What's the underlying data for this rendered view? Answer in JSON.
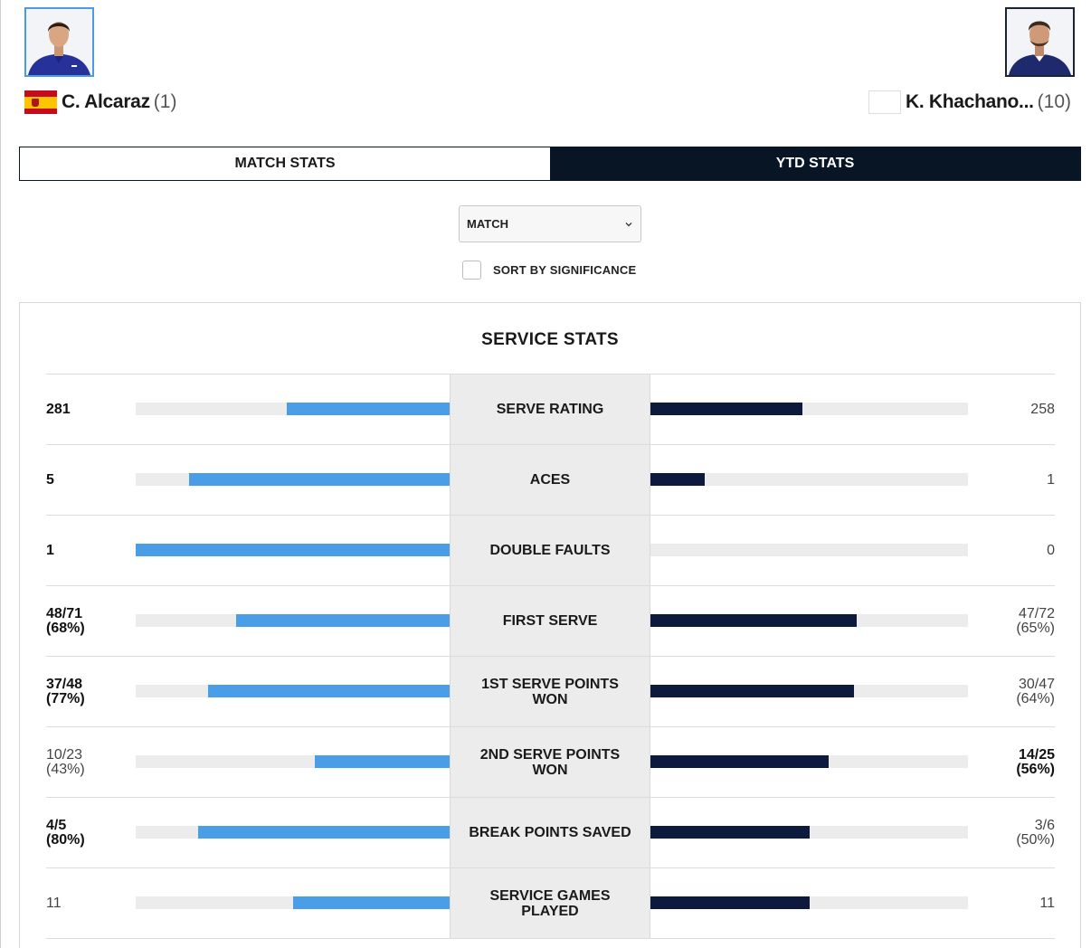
{
  "players": {
    "p1": {
      "name": "C. Alcaraz",
      "seed": "(1)",
      "flag_icon": "spain-flag-icon"
    },
    "p2": {
      "name": "K. Khachano...",
      "seed": "(10)",
      "flag_icon": "flag-placeholder-icon"
    }
  },
  "tabs": {
    "match_stats": "MATCH STATS",
    "ytd_stats": "YTD STATS",
    "active": "ytd_stats"
  },
  "filter": {
    "selected": "MATCH",
    "sort_label": "SORT BY SIGNIFICANCE",
    "sort_checked": false
  },
  "section": {
    "title": "SERVICE STATS"
  },
  "colors": {
    "p1_bar": "#4a9ee8",
    "p2_bar": "#0d1a3d",
    "active_tab": "#071525",
    "track": "#ececec"
  },
  "stats": [
    {
      "label": "SERVE RATING",
      "p1": [
        "281"
      ],
      "p2": [
        "258"
      ],
      "p1_bold": true,
      "p2_bold": false,
      "p1_fraction": 0.52,
      "p2_fraction": 0.48
    },
    {
      "label": "ACES",
      "p1": [
        "5"
      ],
      "p2": [
        "1"
      ],
      "p1_bold": true,
      "p2_bold": false,
      "p1_fraction": 0.83,
      "p2_fraction": 0.17
    },
    {
      "label": "DOUBLE FAULTS",
      "p1": [
        "1"
      ],
      "p2": [
        "0"
      ],
      "p1_bold": true,
      "p2_bold": false,
      "p1_fraction": 1.0,
      "p2_fraction": 0.0
    },
    {
      "label": "FIRST SERVE",
      "p1": [
        "48/71",
        "(68%)"
      ],
      "p2": [
        "47/72",
        "(65%)"
      ],
      "p1_bold": true,
      "p2_bold": false,
      "p1_fraction": 0.68,
      "p2_fraction": 0.65
    },
    {
      "label": "1ST SERVE POINTS WON",
      "p1": [
        "37/48",
        "(77%)"
      ],
      "p2": [
        "30/47",
        "(64%)"
      ],
      "p1_bold": true,
      "p2_bold": false,
      "p1_fraction": 0.77,
      "p2_fraction": 0.64
    },
    {
      "label": "2ND SERVE POINTS WON",
      "p1": [
        "10/23",
        "(43%)"
      ],
      "p2": [
        "14/25",
        "(56%)"
      ],
      "p1_bold": false,
      "p2_bold": true,
      "p1_fraction": 0.43,
      "p2_fraction": 0.56
    },
    {
      "label": "BREAK POINTS SAVED",
      "p1": [
        "4/5",
        "(80%)"
      ],
      "p2": [
        "3/6",
        "(50%)"
      ],
      "p1_bold": true,
      "p2_bold": false,
      "p1_fraction": 0.8,
      "p2_fraction": 0.5
    },
    {
      "label": "SERVICE GAMES PLAYED",
      "p1": [
        "11"
      ],
      "p2": [
        "11"
      ],
      "p1_bold": false,
      "p2_bold": false,
      "p1_fraction": 0.5,
      "p2_fraction": 0.5
    }
  ]
}
